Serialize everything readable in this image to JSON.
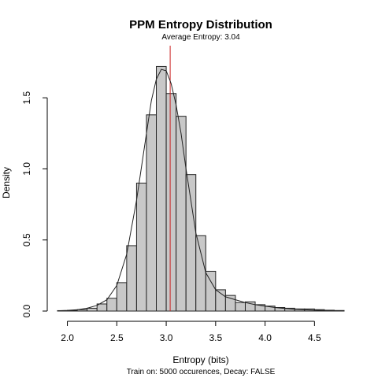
{
  "chart_data": {
    "type": "histogram",
    "title": "PPM Entropy Distribution",
    "subtitle": "Average Entropy: 3.04",
    "xlabel": "Entropy (bits)",
    "ylabel": "Density",
    "caption": "Train on: 5000 occurences, Decay: FALSE",
    "xlim": [
      1.9,
      4.8
    ],
    "ylim": [
      0,
      1.8
    ],
    "x_ticks": [
      2.0,
      2.5,
      3.0,
      3.5,
      4.0,
      4.5
    ],
    "x_tick_labels": [
      "2.0",
      "2.5",
      "3.0",
      "3.5",
      "4.0",
      "4.5"
    ],
    "y_ticks": [
      0.0,
      0.5,
      1.0,
      1.5
    ],
    "y_tick_labels": [
      "0.0",
      "0.5",
      "1.0",
      "1.5"
    ],
    "mean_line": {
      "value": 3.04,
      "color": "#cc2222"
    },
    "bin_width": 0.1,
    "bins": [
      {
        "start": 1.9,
        "density": 0.003
      },
      {
        "start": 2.0,
        "density": 0.005
      },
      {
        "start": 2.1,
        "density": 0.01
      },
      {
        "start": 2.2,
        "density": 0.02
      },
      {
        "start": 2.3,
        "density": 0.05
      },
      {
        "start": 2.4,
        "density": 0.09
      },
      {
        "start": 2.5,
        "density": 0.2
      },
      {
        "start": 2.6,
        "density": 0.46
      },
      {
        "start": 2.7,
        "density": 0.9
      },
      {
        "start": 2.8,
        "density": 1.38
      },
      {
        "start": 2.9,
        "density": 1.72
      },
      {
        "start": 3.0,
        "density": 1.53
      },
      {
        "start": 3.1,
        "density": 1.37
      },
      {
        "start": 3.2,
        "density": 0.96
      },
      {
        "start": 3.3,
        "density": 0.53
      },
      {
        "start": 3.4,
        "density": 0.28
      },
      {
        "start": 3.5,
        "density": 0.15
      },
      {
        "start": 3.6,
        "density": 0.11
      },
      {
        "start": 3.7,
        "density": 0.06
      },
      {
        "start": 3.8,
        "density": 0.065
      },
      {
        "start": 3.9,
        "density": 0.045
      },
      {
        "start": 4.0,
        "density": 0.035
      },
      {
        "start": 4.1,
        "density": 0.025
      },
      {
        "start": 4.2,
        "density": 0.02
      },
      {
        "start": 4.3,
        "density": 0.015
      },
      {
        "start": 4.4,
        "density": 0.015
      },
      {
        "start": 4.5,
        "density": 0.01
      },
      {
        "start": 4.6,
        "density": 0.006
      },
      {
        "start": 4.7,
        "density": 0.004
      }
    ],
    "density_curve": {
      "x": [
        1.9,
        2.0,
        2.1,
        2.2,
        2.3,
        2.4,
        2.5,
        2.6,
        2.7,
        2.8,
        2.85,
        2.9,
        2.95,
        3.0,
        3.05,
        3.1,
        3.15,
        3.2,
        3.3,
        3.4,
        3.5,
        3.6,
        3.7,
        3.8,
        3.9,
        4.0,
        4.1,
        4.2,
        4.3,
        4.4,
        4.5,
        4.6,
        4.7,
        4.8
      ],
      "y": [
        0.002,
        0.005,
        0.01,
        0.02,
        0.04,
        0.08,
        0.18,
        0.4,
        0.78,
        1.25,
        1.48,
        1.63,
        1.7,
        1.69,
        1.6,
        1.45,
        1.25,
        1.0,
        0.55,
        0.27,
        0.15,
        0.1,
        0.08,
        0.06,
        0.045,
        0.035,
        0.025,
        0.018,
        0.013,
        0.009,
        0.006,
        0.004,
        0.002,
        0.001
      ]
    }
  }
}
